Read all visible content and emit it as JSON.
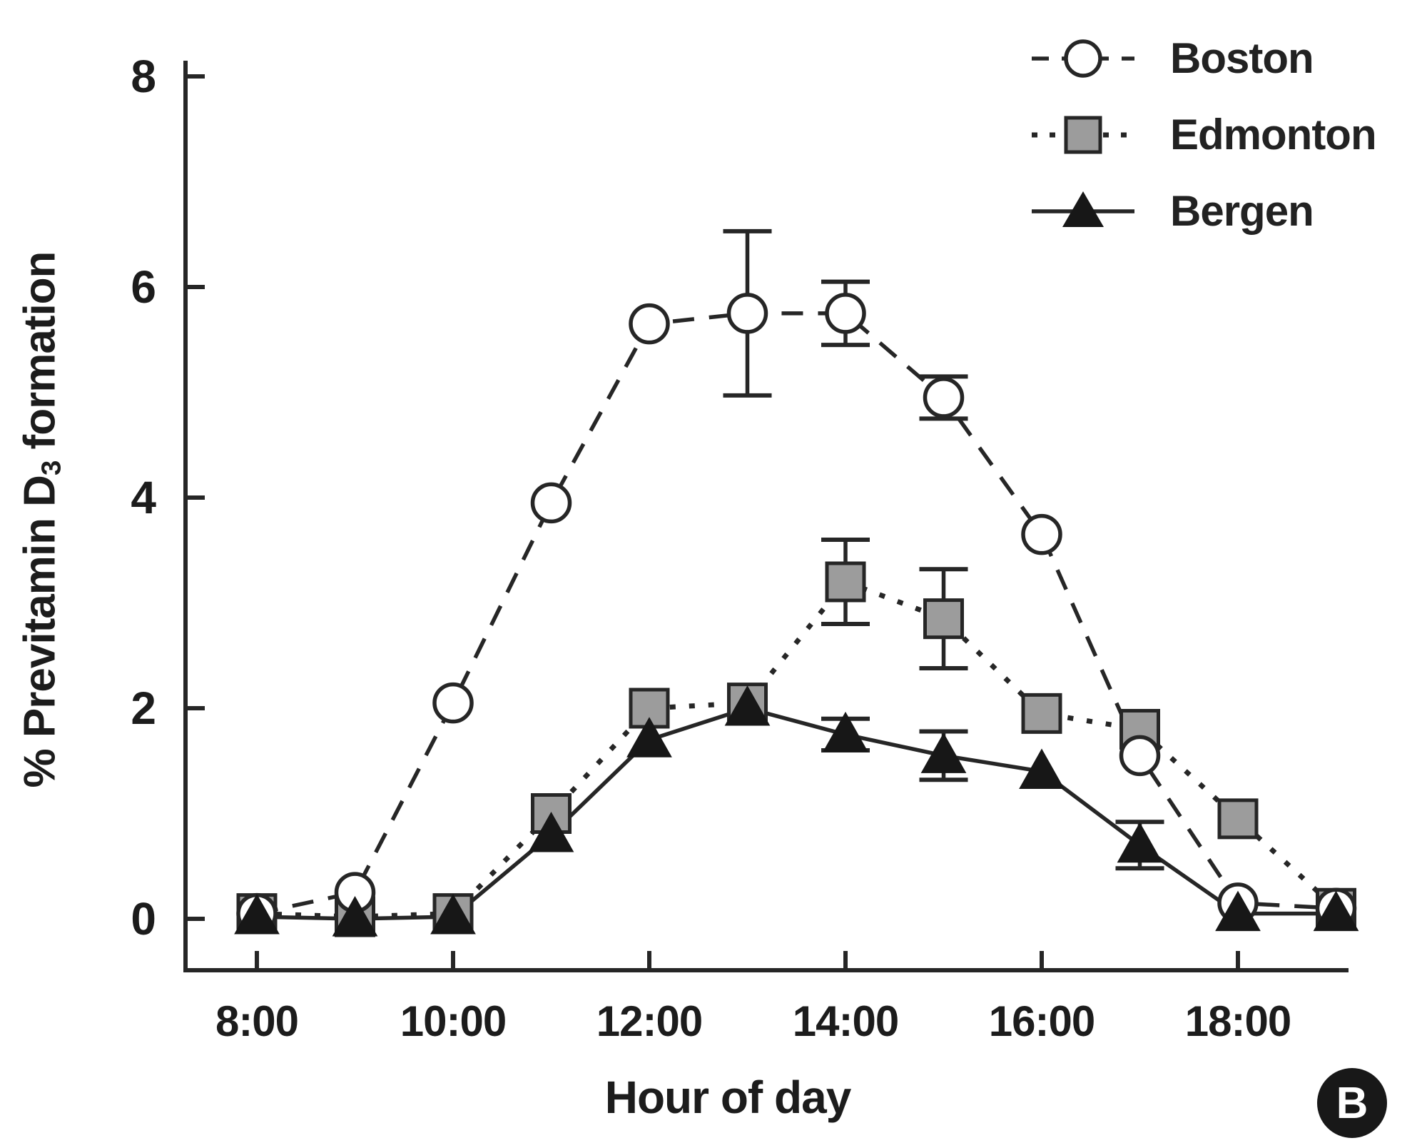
{
  "figure": {
    "panel_label": "B",
    "background_color": "#ffffff",
    "ink_color": "#262626"
  },
  "axes": {
    "y_title_prefix": "% Previtamin D",
    "y_title_sub": "3",
    "y_title_suffix": " formation",
    "x_title": "Hour of day"
  },
  "chart_data": {
    "type": "line",
    "title": "",
    "xlabel": "Hour of day",
    "ylabel": "% Previtamin D3 formation",
    "grid": false,
    "legend_position": "top-right",
    "x": [
      8,
      9,
      10,
      11,
      12,
      13,
      14,
      15,
      16,
      17,
      18,
      19
    ],
    "x_tick_hours": [
      8,
      10,
      12,
      14,
      16,
      18
    ],
    "x_tick_labels": [
      "8:00",
      "10:00",
      "12:00",
      "14:00",
      "16:00",
      "18:00"
    ],
    "y_ticks": [
      0,
      2,
      4,
      6,
      8
    ],
    "y_tick_labels": [
      "0",
      "2",
      "4",
      "6",
      "8"
    ],
    "ylim": [
      0,
      8
    ],
    "series": [
      {
        "name": "Boston",
        "marker": "circle",
        "marker_fill": "#ffffff",
        "line_style": "dashed",
        "color": "#262626",
        "values": [
          0.05,
          0.25,
          2.05,
          3.95,
          5.65,
          5.75,
          5.75,
          4.95,
          3.65,
          1.55,
          0.15,
          0.1
        ],
        "errors": [
          0,
          0,
          0,
          0,
          0,
          0.78,
          0.3,
          0.2,
          0,
          0,
          0,
          0
        ]
      },
      {
        "name": "Edmonton",
        "marker": "square",
        "marker_fill": "#9c9c9c",
        "line_style": "dotted",
        "color": "#262626",
        "values": [
          0.05,
          0.02,
          0.05,
          1.0,
          2.0,
          2.05,
          3.2,
          2.85,
          1.95,
          1.8,
          0.95,
          0.1
        ],
        "errors": [
          0,
          0,
          0,
          0,
          0,
          0,
          0.4,
          0.47,
          0,
          0,
          0,
          0
        ]
      },
      {
        "name": "Bergen",
        "marker": "triangle",
        "marker_fill": "#171717",
        "line_style": "solid",
        "color": "#262626",
        "values": [
          0.02,
          0.0,
          0.02,
          0.8,
          1.7,
          2.0,
          1.75,
          1.55,
          1.4,
          0.7,
          0.05,
          0.05
        ],
        "errors": [
          0,
          0,
          0,
          0,
          0,
          0,
          0.15,
          0.23,
          0,
          0.22,
          0,
          0
        ]
      }
    ]
  }
}
